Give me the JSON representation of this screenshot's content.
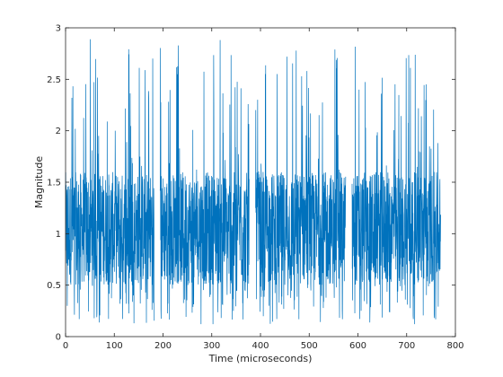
{
  "chart_data": {
    "type": "line",
    "title": "",
    "xlabel": "Time (microseconds)",
    "ylabel": "Magnitude",
    "xlim": [
      0,
      800
    ],
    "ylim": [
      0,
      3
    ],
    "xticks": [
      0,
      100,
      200,
      300,
      400,
      500,
      600,
      700,
      800
    ],
    "yticks": [
      0,
      0.5,
      1,
      1.5,
      2,
      2.5,
      3
    ],
    "grid": false,
    "legend": "none",
    "series": [
      {
        "color": "#0072BD",
        "segments": [
          {
            "x_start": 0,
            "x_end": 182,
            "y_min": 0.12,
            "y_max": 2.9,
            "y_core_low": 0.5,
            "y_core_high": 1.6
          },
          {
            "x_start": 194,
            "x_end": 377,
            "y_min": 0.12,
            "y_max": 2.9,
            "y_core_low": 0.5,
            "y_core_high": 1.6
          },
          {
            "x_start": 390,
            "x_end": 575,
            "y_min": 0.12,
            "y_max": 2.9,
            "y_core_low": 0.5,
            "y_core_high": 1.6
          },
          {
            "x_start": 588,
            "x_end": 770,
            "y_min": 0.12,
            "y_max": 2.9,
            "y_core_low": 0.5,
            "y_core_high": 1.6
          }
        ]
      }
    ]
  }
}
